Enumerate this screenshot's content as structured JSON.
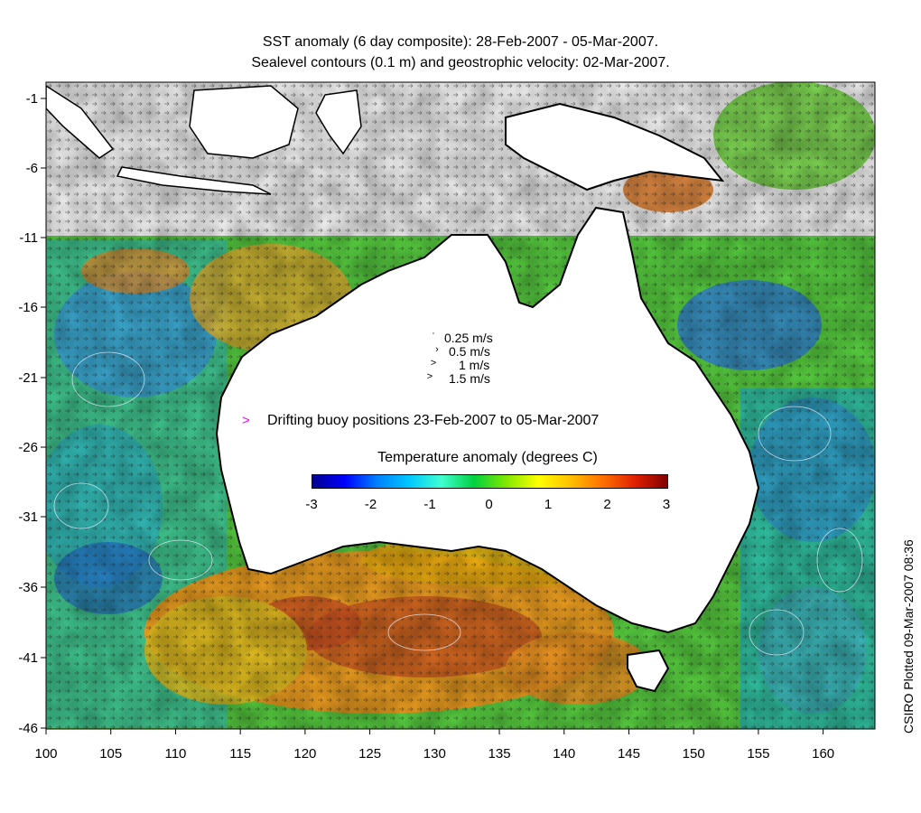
{
  "title_line1": "SST anomaly (6 day composite): 28-Feb-2007 - 05-Mar-2007.",
  "title_line2": "Sealevel contours (0.1 m) and geostrophic velocity: 02-Mar-2007.",
  "y_ticks": [
    "-1",
    "-6",
    "-11",
    "-16",
    "-21",
    "-26",
    "-31",
    "-36",
    "-41",
    "-46"
  ],
  "x_ticks": [
    "100",
    "105",
    "110",
    "115",
    "120",
    "125",
    "130",
    "135",
    "140",
    "145",
    "150",
    "155",
    "160"
  ],
  "speed_legend": [
    "0.25 m/s",
    "0.5 m/s",
    "1 m/s",
    "1.5 m/s"
  ],
  "buoy_marker": ">",
  "buoy_label": "Drifting buoy positions 23-Feb-2007 to 05-Mar-2007",
  "colorbar_title": "Temperature anomaly (degrees C)",
  "colorbar_ticks": [
    "-3",
    "-2",
    "-1",
    "0",
    "1",
    "2",
    "3"
  ],
  "credit": "CSIRO Plotted 09-Mar-2007 08:36",
  "map_extent": {
    "lon": [
      100,
      164
    ],
    "lat": [
      -46,
      1
    ]
  },
  "colors": {
    "land": "#ffffff",
    "coast": "#000000",
    "buoy": "#ff00ff",
    "contour": "#e8f0ff"
  }
}
